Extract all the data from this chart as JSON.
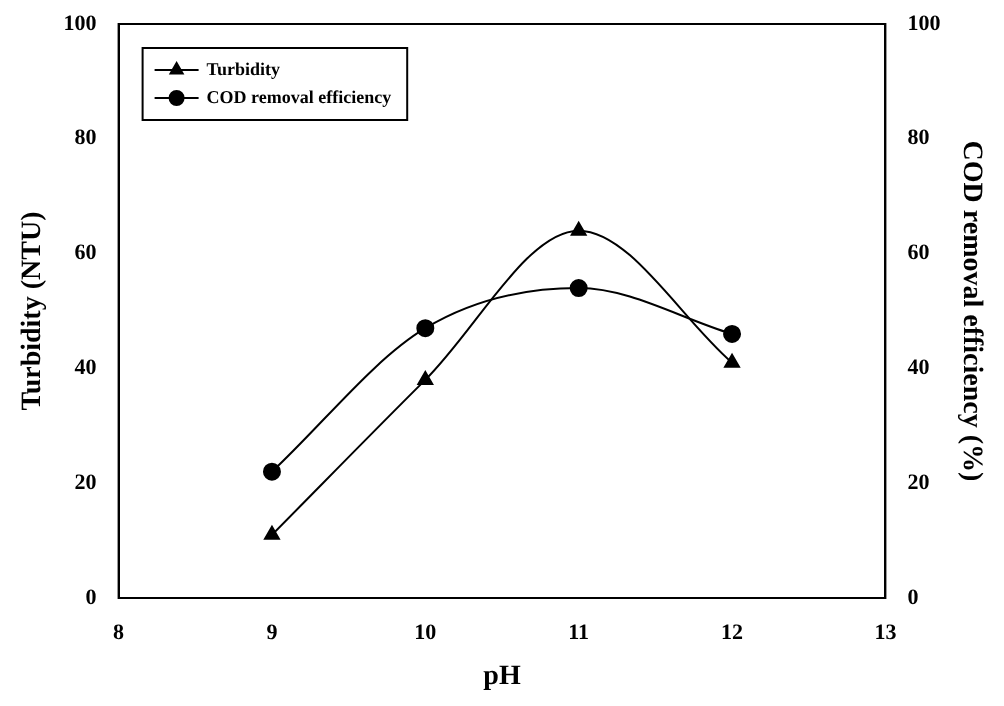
{
  "chart_data": {
    "type": "line",
    "xlabel": "pH",
    "ylabel": "Turbidity (NTU)",
    "y2label": "COD removal efficiency (%)",
    "x": [
      9,
      10,
      11,
      12
    ],
    "series": [
      {
        "name": "Turbidity",
        "color": "#000000",
        "values": [
          11,
          38,
          64,
          41
        ],
        "marker": "triangle"
      },
      {
        "name": "COD removal efficiency",
        "color": "#000000",
        "values": [
          22,
          47,
          54,
          46
        ],
        "marker": "circle",
        "axis": "y2"
      }
    ],
    "xlim": [
      8,
      13
    ],
    "xticks": [
      8,
      9,
      10,
      11,
      12,
      13
    ],
    "ylim": [
      0,
      100
    ],
    "yticks": [
      0,
      20,
      40,
      60,
      80,
      100
    ],
    "y2lim": [
      0,
      100
    ],
    "y2ticks": [
      0,
      20,
      40,
      60,
      80,
      100
    ],
    "grid": false,
    "legend": "top left",
    "line_style": "solid"
  }
}
